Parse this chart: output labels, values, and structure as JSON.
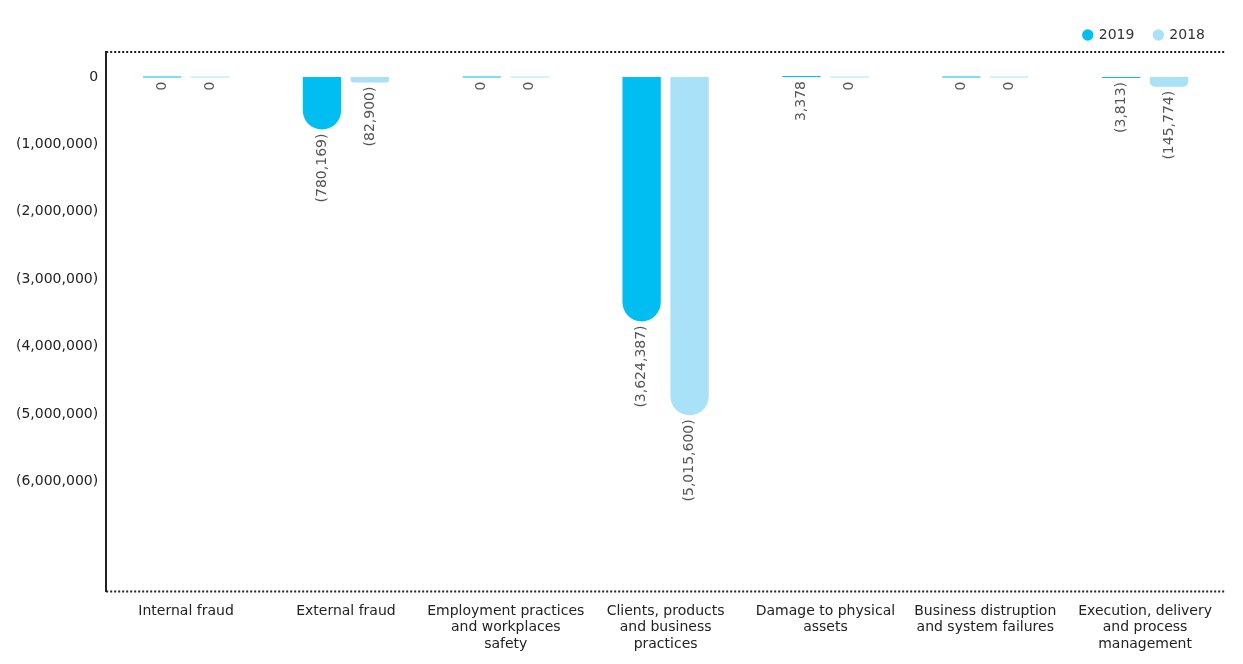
{
  "chart_data": {
    "type": "bar",
    "categories": [
      "Internal fraud",
      "External fraud",
      "Employment practices and workplaces safety",
      "Clients, products and business practices",
      "Damage to physical assets",
      "Business distruption and system failures",
      "Execution, delivery and process management"
    ],
    "series": [
      {
        "name": "2019",
        "color": "#00bdf2",
        "values": [
          0,
          -780169,
          0,
          -3624387,
          3378,
          0,
          -3813
        ],
        "value_labels": [
          "0",
          "(780,169)",
          "0",
          "(3,624,387)",
          "3,378",
          "0",
          "(3,813)"
        ]
      },
      {
        "name": "2018",
        "color": "#a9e1f8",
        "values": [
          0,
          -82900,
          0,
          -5015600,
          0,
          0,
          -145774
        ],
        "value_labels": [
          "0",
          "(82,900)",
          "0",
          "(5,015,600)",
          "0",
          "0",
          "(145,774)"
        ]
      }
    ],
    "ylim": [
      -7630000,
      370000
    ],
    "yticks": [
      0,
      {
        "value": -1000000,
        "label": "(1,000,000)"
      },
      {
        "value": -2000000,
        "label": "(2,000,000)"
      },
      {
        "value": -3000000,
        "label": "(3,000,000)"
      },
      {
        "value": -4000000,
        "label": "(4,000,000)"
      },
      {
        "value": -5000000,
        "label": "(5,000,000)"
      },
      {
        "value": -6000000,
        "label": "(6,000,000)"
      }
    ],
    "grid": false,
    "legend": "top right"
  }
}
